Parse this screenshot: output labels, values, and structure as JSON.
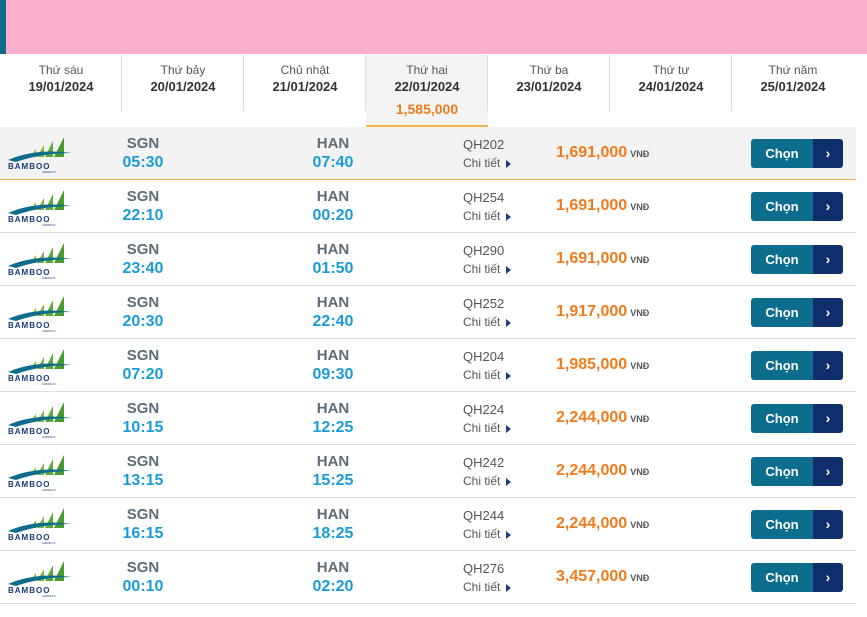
{
  "colors": {
    "accent_pink": "#fdb0cd",
    "price_orange": "#f07b1d",
    "time_blue": "#1b9bd7",
    "button_teal": "#0d6d8c",
    "button_navy": "#0e2f6b"
  },
  "days": [
    {
      "name": "Thứ sáu",
      "date": "19/01/2024",
      "price": ""
    },
    {
      "name": "Thứ bảy",
      "date": "20/01/2024",
      "price": ""
    },
    {
      "name": "Chủ nhật",
      "date": "21/01/2024",
      "price": ""
    },
    {
      "name": "Thứ hai",
      "date": "22/01/2024",
      "price": "1,585,000",
      "active": true
    },
    {
      "name": "Thứ ba",
      "date": "23/01/2024",
      "price": ""
    },
    {
      "name": "Thứ tư",
      "date": "24/01/2024",
      "price": ""
    },
    {
      "name": "Thứ năm",
      "date": "25/01/2024",
      "price": ""
    }
  ],
  "airline_logo": {
    "icon": "bamboo-airways-logo-icon",
    "text": "BAMBOO",
    "subtext": "AIRWAYS"
  },
  "detail_label": "Chi tiết",
  "currency": "VNĐ",
  "select_label": "Chọn",
  "select_arrow": "›",
  "flights": [
    {
      "origin": "SGN",
      "dep": "05:30",
      "dest": "HAN",
      "arr": "07:40",
      "flight": "QH202",
      "price": "1,691,000"
    },
    {
      "origin": "SGN",
      "dep": "22:10",
      "dest": "HAN",
      "arr": "00:20",
      "flight": "QH254",
      "price": "1,691,000"
    },
    {
      "origin": "SGN",
      "dep": "23:40",
      "dest": "HAN",
      "arr": "01:50",
      "flight": "QH290",
      "price": "1,691,000"
    },
    {
      "origin": "SGN",
      "dep": "20:30",
      "dest": "HAN",
      "arr": "22:40",
      "flight": "QH252",
      "price": "1,917,000"
    },
    {
      "origin": "SGN",
      "dep": "07:20",
      "dest": "HAN",
      "arr": "09:30",
      "flight": "QH204",
      "price": "1,985,000"
    },
    {
      "origin": "SGN",
      "dep": "10:15",
      "dest": "HAN",
      "arr": "12:25",
      "flight": "QH224",
      "price": "2,244,000"
    },
    {
      "origin": "SGN",
      "dep": "13:15",
      "dest": "HAN",
      "arr": "15:25",
      "flight": "QH242",
      "price": "2,244,000"
    },
    {
      "origin": "SGN",
      "dep": "16:15",
      "dest": "HAN",
      "arr": "18:25",
      "flight": "QH244",
      "price": "2,244,000"
    },
    {
      "origin": "SGN",
      "dep": "00:10",
      "dest": "HAN",
      "arr": "02:20",
      "flight": "QH276",
      "price": "3,457,000"
    }
  ]
}
